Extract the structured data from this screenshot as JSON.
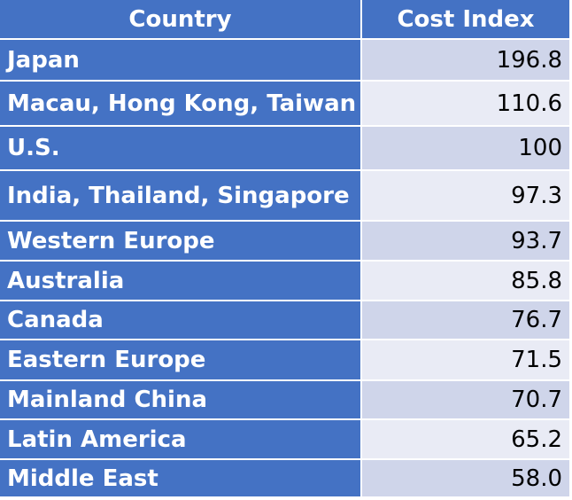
{
  "table": {
    "header": [
      "Country",
      "Cost Index"
    ],
    "rows": [
      [
        "Japan",
        "196.8"
      ],
      [
        "Macau, Hong Kong, Taiwan",
        "110.6"
      ],
      [
        "U.S.",
        "100"
      ],
      [
        "India, Thailand, Singapore",
        "97.3"
      ],
      [
        "Western Europe",
        "93.7"
      ],
      [
        "Australia",
        "85.8"
      ],
      [
        "Canada",
        "76.7"
      ],
      [
        "Eastern Europe",
        "71.5"
      ],
      [
        "Mainland China",
        "70.7"
      ],
      [
        "Latin America",
        "65.2"
      ],
      [
        "Middle East",
        "58.0"
      ]
    ]
  }
}
